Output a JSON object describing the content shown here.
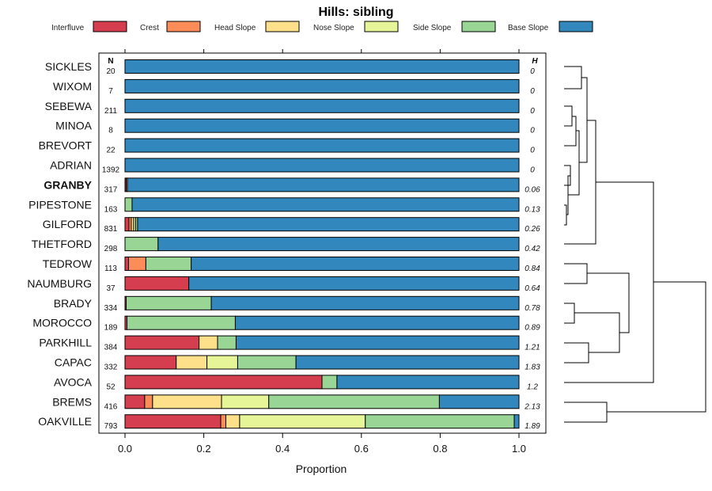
{
  "chart_data": {
    "type": "bar",
    "stacked": true,
    "orientation": "horizontal",
    "title": "Hills: sibling",
    "xlabel": "Proportion",
    "xlim": [
      0,
      1
    ],
    "xticks": [
      "0.0",
      "0.2",
      "0.4",
      "0.6",
      "0.8",
      "1.0"
    ],
    "n_header": "N",
    "h_header": "H",
    "highlight": "GRANBY",
    "legend": [
      {
        "name": "Interfluve",
        "color": "#D53E4F"
      },
      {
        "name": "Crest",
        "color": "#FC8D59"
      },
      {
        "name": "Head Slope",
        "color": "#FEE08B"
      },
      {
        "name": "Nose Slope",
        "color": "#E6F598"
      },
      {
        "name": "Side Slope",
        "color": "#99D594"
      },
      {
        "name": "Base Slope",
        "color": "#3288BD"
      }
    ],
    "rows": [
      {
        "name": "SICKLES",
        "n": "20",
        "h": "0",
        "values": [
          0,
          0,
          0,
          0,
          0,
          1
        ]
      },
      {
        "name": "WIXOM",
        "n": "7",
        "h": "0",
        "values": [
          0,
          0,
          0,
          0,
          0,
          1
        ]
      },
      {
        "name": "SEBEWA",
        "n": "211",
        "h": "0",
        "values": [
          0,
          0,
          0,
          0,
          0,
          1
        ]
      },
      {
        "name": "MINOA",
        "n": "8",
        "h": "0",
        "values": [
          0,
          0,
          0,
          0,
          0,
          1
        ]
      },
      {
        "name": "BREVORT",
        "n": "22",
        "h": "0",
        "values": [
          0,
          0,
          0,
          0,
          0,
          1
        ]
      },
      {
        "name": "ADRIAN",
        "n": "1392",
        "h": "0",
        "values": [
          0,
          0,
          0,
          0,
          0,
          1
        ]
      },
      {
        "name": "GRANBY",
        "n": "317",
        "h": "0.06",
        "values": [
          0.003,
          0.003,
          0,
          0,
          0,
          0.994
        ]
      },
      {
        "name": "PIPESTONE",
        "n": "163",
        "h": "0.13",
        "values": [
          0,
          0,
          0,
          0,
          0.018,
          0.982
        ]
      },
      {
        "name": "GILFORD",
        "n": "831",
        "h": "0.26",
        "values": [
          0.01,
          0.006,
          0.006,
          0.005,
          0.005,
          0.968
        ]
      },
      {
        "name": "THETFORD",
        "n": "298",
        "h": "0.42",
        "values": [
          0,
          0,
          0,
          0,
          0.084,
          0.916
        ]
      },
      {
        "name": "TEDROW",
        "n": "113",
        "h": "0.84",
        "values": [
          0.009,
          0.044,
          0,
          0,
          0.115,
          0.832
        ]
      },
      {
        "name": "NAUMBURG",
        "n": "37",
        "h": "0.64",
        "values": [
          0.162,
          0,
          0,
          0,
          0,
          0.838
        ]
      },
      {
        "name": "BRADY",
        "n": "334",
        "h": "0.78",
        "values": [
          0.003,
          0,
          0,
          0,
          0.216,
          0.781
        ]
      },
      {
        "name": "MOROCCO",
        "n": "189",
        "h": "0.89",
        "values": [
          0.005,
          0,
          0,
          0,
          0.275,
          0.72
        ]
      },
      {
        "name": "PARKHILL",
        "n": "384",
        "h": "1.21",
        "values": [
          0.188,
          0,
          0.047,
          0,
          0.047,
          0.718
        ]
      },
      {
        "name": "CAPAC",
        "n": "332",
        "h": "1.83",
        "values": [
          0.13,
          0,
          0.078,
          0.078,
          0.148,
          0.566
        ]
      },
      {
        "name": "AVOCA",
        "n": "52",
        "h": "1.2",
        "values": [
          0.5,
          0,
          0,
          0,
          0.038,
          0.462
        ]
      },
      {
        "name": "BREMS",
        "n": "416",
        "h": "2.13",
        "values": [
          0.05,
          0.02,
          0.175,
          0.12,
          0.433,
          0.202
        ]
      },
      {
        "name": "OAKVILLE",
        "n": "793",
        "h": "1.89",
        "values": [
          0.243,
          0.013,
          0.035,
          0.319,
          0.378,
          0.012
        ]
      }
    ]
  }
}
